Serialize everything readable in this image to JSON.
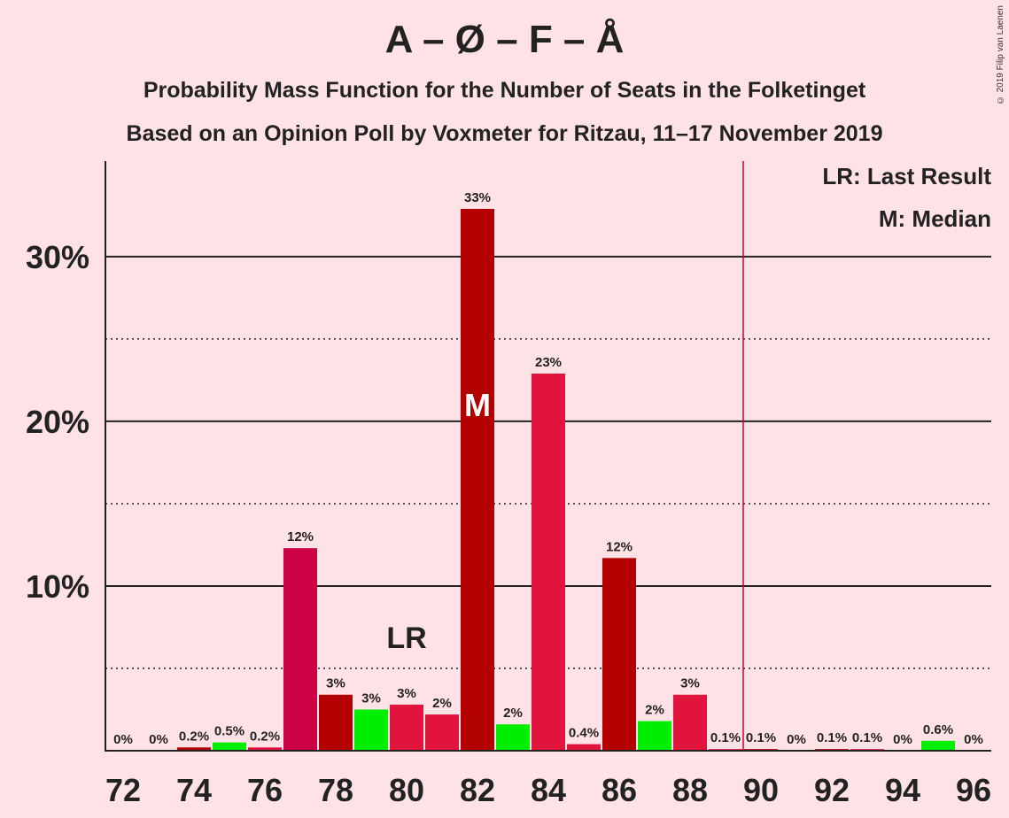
{
  "header": {
    "title": "A – Ø – F – Å",
    "subtitle1": "Probability Mass Function for the Number of Seats in the Folketinget",
    "subtitle2": "Based on an Opinion Poll by Voxmeter for Ritzau, 11–17 November 2019",
    "copyright": "© 2019 Filip van Laenen"
  },
  "legend": {
    "lr": "LR: Last Result",
    "m": "M: Median"
  },
  "markers": {
    "median_label": "M",
    "median_seat": 82,
    "last_result_label": "LR",
    "last_result_seat": 80,
    "majority_seat": 89.5
  },
  "colors": {
    "background": "#ffe2e6",
    "majority_line": "#cc0033",
    "bar_palette": [
      "#b30000",
      "#e0143c",
      "#00ee00",
      "#cc0044"
    ]
  },
  "chart_data": {
    "type": "bar",
    "x": [
      72,
      73,
      74,
      75,
      76,
      77,
      78,
      79,
      80,
      81,
      82,
      83,
      84,
      85,
      86,
      87,
      88,
      89,
      90,
      91,
      92,
      93,
      94,
      95,
      96
    ],
    "values": [
      0,
      0,
      0.2,
      0.5,
      0.2,
      12.3,
      3.4,
      2.5,
      2.8,
      2.2,
      32.9,
      1.6,
      22.9,
      0.4,
      11.7,
      1.8,
      3.4,
      0.1,
      0.1,
      0,
      0.1,
      0.1,
      0,
      0.6,
      0
    ],
    "labels": [
      "0%",
      "0%",
      "0.2%",
      "0.5%",
      "0.2%",
      "12%",
      "3%",
      "3%",
      "3%",
      "2%",
      "33%",
      "2%",
      "23%",
      "0.4%",
      "12%",
      "2%",
      "3%",
      "0.1%",
      "0.1%",
      "0%",
      "0.1%",
      "0.1%",
      "0%",
      "0.6%",
      "0%"
    ],
    "colors": [
      "#b30000",
      "#e0143c",
      "#b30000",
      "#00ee00",
      "#e0143c",
      "#cc0044",
      "#b30000",
      "#00ee00",
      "#e0143c",
      "#e0143c",
      "#b30000",
      "#00ee00",
      "#e0143c",
      "#e0143c",
      "#b30000",
      "#00ee00",
      "#e0143c",
      "#e0143c",
      "#b30000",
      "#e0143c",
      "#b30000",
      "#e0143c",
      "#b30000",
      "#00ee00",
      "#e0143c"
    ],
    "xticks": [
      72,
      74,
      76,
      78,
      80,
      82,
      84,
      86,
      88,
      90,
      92,
      94,
      96
    ],
    "yticks": [
      {
        "value": 10,
        "label": "10%"
      },
      {
        "value": 20,
        "label": "20%"
      },
      {
        "value": 30,
        "label": "30%"
      }
    ],
    "minor_gridlines": [
      5,
      15,
      25
    ],
    "ylim": [
      0,
      35.8
    ],
    "xlim": [
      71.5,
      96.5
    ]
  }
}
